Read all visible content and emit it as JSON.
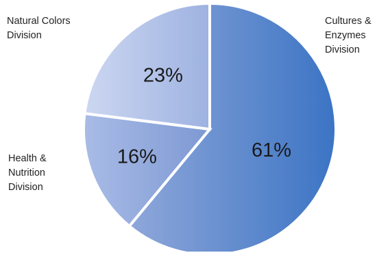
{
  "chart_data": {
    "type": "pie",
    "title": "",
    "slices": [
      {
        "label": "Cultures & Enzymes Division",
        "value": 61,
        "value_label": "61%"
      },
      {
        "label": "Health & Nutrition Division",
        "value": 16,
        "value_label": "16%"
      },
      {
        "label": "Natural Colors Division",
        "value": 23,
        "value_label": "23%"
      }
    ],
    "start": "12 o'clock",
    "direction": "clockwise",
    "legend": "none",
    "colors": {
      "cultures_light": "#8FA7DA",
      "cultures_dark": "#3B74C4",
      "health_light": "#A9BCE6",
      "health_dark": "#7D98D3",
      "natural_light": "#CCD7F1",
      "natural_dark": "#9EB2E1",
      "separator": "#ffffff",
      "text": "#1a1a1a"
    }
  }
}
